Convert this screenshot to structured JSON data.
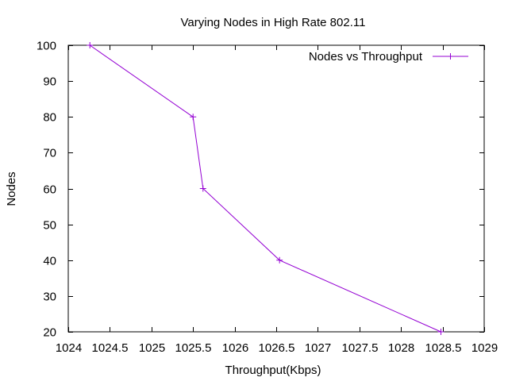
{
  "chart_data": {
    "type": "line",
    "title": "Varying Nodes in High Rate 802.11",
    "xlabel": "Throughput(Kbps)",
    "ylabel": "Nodes",
    "xlim": [
      1024,
      1029
    ],
    "ylim": [
      20,
      100
    ],
    "x_ticks": [
      1024,
      1024.5,
      1025,
      1025.5,
      1026,
      1026.5,
      1027,
      1027.5,
      1028,
      1028.5,
      1029
    ],
    "y_ticks": [
      20,
      30,
      40,
      50,
      60,
      70,
      80,
      90,
      100
    ],
    "grid": false,
    "legend_position": "top-right",
    "series": [
      {
        "name": "Nodes vs Throughput",
        "color": "#9400d3",
        "marker": "plus",
        "points": [
          {
            "x": 1024.26,
            "y": 100
          },
          {
            "x": 1025.5,
            "y": 80
          },
          {
            "x": 1025.62,
            "y": 60
          },
          {
            "x": 1026.54,
            "y": 40
          },
          {
            "x": 1028.48,
            "y": 20
          }
        ]
      }
    ]
  }
}
